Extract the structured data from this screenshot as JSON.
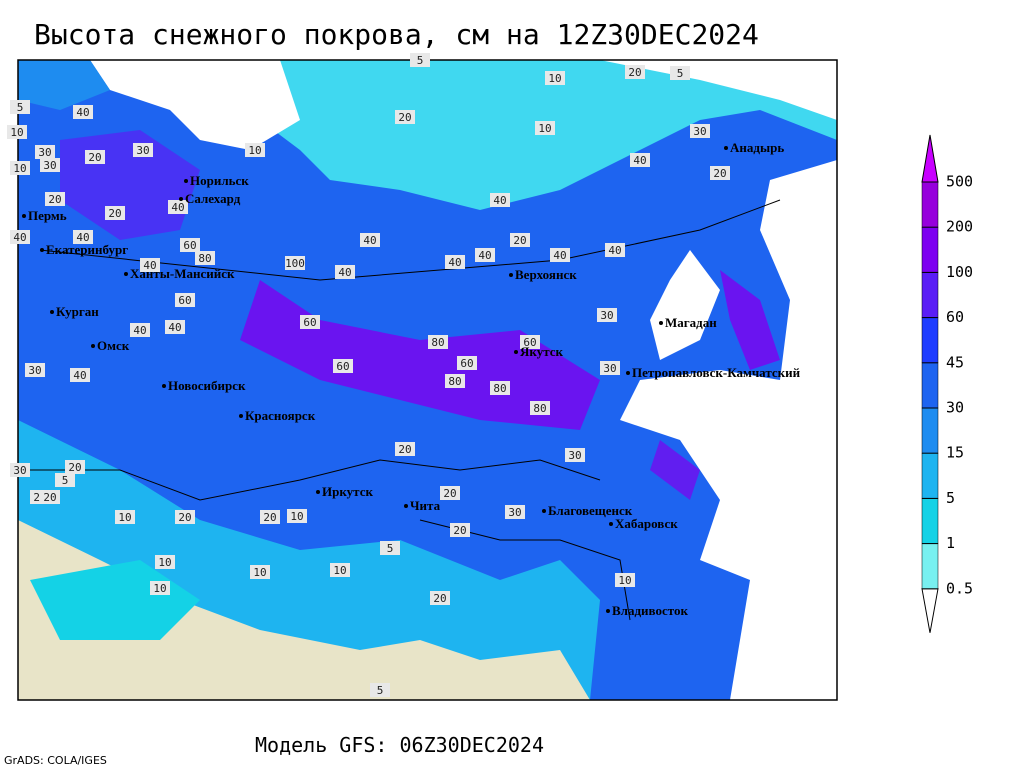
{
  "header": {
    "title": "Высота снежного покрова, см на 12Z30DEC2024"
  },
  "footer": {
    "model": "Модель GFS: 06Z30DEC2024",
    "credit": "GrADS: COLA/IGES"
  },
  "cities": [
    "Норильск",
    "Салехард",
    "Пермь",
    "Екатеринбург",
    "Ханты-Мансийск",
    "Курган",
    "Омск",
    "Новосибирск",
    "Красноярск",
    "Иркутск",
    "Чита",
    "Верхоянск",
    "Якутск",
    "Магадан",
    "Анадырь",
    "Петропавловск-Камчатский",
    "Благовещенск",
    "Хабаровск",
    "Владивосток"
  ],
  "contour_labels": [
    30,
    20,
    10,
    5,
    10,
    20,
    40,
    30,
    20,
    10,
    20,
    40,
    40,
    40,
    30,
    40,
    60,
    80,
    100,
    60,
    40,
    40,
    60,
    40,
    40,
    40,
    40,
    40,
    60,
    80,
    80,
    80,
    60,
    60,
    80,
    30,
    40,
    20,
    30,
    20,
    20,
    10,
    20,
    10,
    5,
    10,
    20,
    30,
    20,
    20,
    10,
    20,
    10,
    5,
    5,
    10,
    10,
    20,
    30,
    40,
    30,
    20,
    10,
    5,
    5,
    10,
    20,
    40,
    40,
    30,
    30,
    20
  ],
  "colorbar": {
    "levels": [
      0.5,
      1,
      5,
      15,
      30,
      45,
      60,
      100,
      200,
      500
    ],
    "colors": [
      "#ffffff",
      "#78f0f0",
      "#14d2e6",
      "#1eb4f0",
      "#1e8cf0",
      "#1e64f0",
      "#1e3cff",
      "#5a1ef5",
      "#7d00f0",
      "#9600dc",
      "#c800ff"
    ]
  }
}
